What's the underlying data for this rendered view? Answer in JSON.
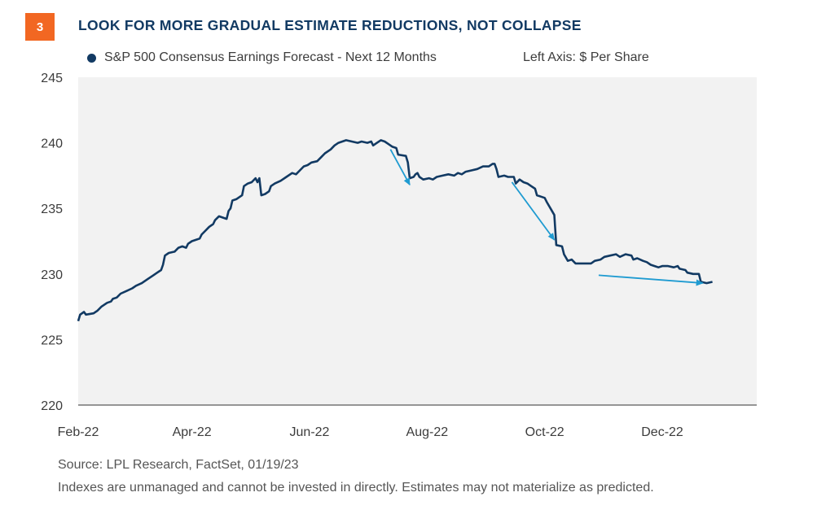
{
  "figure": {
    "number": "3",
    "title": "LOOK FOR MORE GRADUAL ESTIMATE REDUCTIONS, NOT COLLAPSE",
    "legend_label": "S&P 500 Consensus Earnings Forecast - Next 12 Months",
    "axis_unit_label": "Left Axis: $ Per Share",
    "source": "Source: LPL Research, FactSet,  01/19/23",
    "disclaimer": "Indexes are unmanaged and cannot be invested in directly. Estimates may not materialize as predicted.",
    "colors": {
      "badge": "#f26722",
      "title": "#123a63",
      "line": "#123a63",
      "arrow": "#1f9bd1",
      "plot_bg": "#f2f2f2"
    }
  },
  "chart_data": {
    "type": "line",
    "title": "LOOK FOR MORE GRADUAL ESTIMATE REDUCTIONS, NOT COLLAPSE",
    "xlabel": "",
    "ylabel": "$ Per Share",
    "ylim": [
      220,
      245
    ],
    "yticks": [
      220,
      225,
      230,
      235,
      240,
      245
    ],
    "xlim": [
      "2022-02-01",
      "2023-01-19"
    ],
    "xticks": [
      {
        "date": "2022-02-01",
        "label": "Feb-22"
      },
      {
        "date": "2022-04-01",
        "label": "Apr-22"
      },
      {
        "date": "2022-06-01",
        "label": "Jun-22"
      },
      {
        "date": "2022-08-01",
        "label": "Aug-22"
      },
      {
        "date": "2022-10-01",
        "label": "Oct-22"
      },
      {
        "date": "2022-12-01",
        "label": "Dec-22"
      }
    ],
    "grid": false,
    "legend": "top-left",
    "series": [
      {
        "name": "S&P 500 Consensus Earnings Forecast - Next 12 Months",
        "points": [
          [
            "2022-02-01",
            226.4
          ],
          [
            "2022-02-02",
            226.9
          ],
          [
            "2022-02-04",
            227.1
          ],
          [
            "2022-02-05",
            226.9
          ],
          [
            "2022-02-09",
            227.0
          ],
          [
            "2022-02-11",
            227.2
          ],
          [
            "2022-02-13",
            227.5
          ],
          [
            "2022-02-16",
            227.8
          ],
          [
            "2022-02-18",
            227.9
          ],
          [
            "2022-02-19",
            228.1
          ],
          [
            "2022-02-21",
            228.2
          ],
          [
            "2022-02-23",
            228.5
          ],
          [
            "2022-02-26",
            228.7
          ],
          [
            "2022-03-01",
            228.9
          ],
          [
            "2022-03-03",
            229.1
          ],
          [
            "2022-03-06",
            229.3
          ],
          [
            "2022-03-09",
            229.6
          ],
          [
            "2022-03-12",
            229.9
          ],
          [
            "2022-03-14",
            230.1
          ],
          [
            "2022-03-16",
            230.3
          ],
          [
            "2022-03-17",
            230.7
          ],
          [
            "2022-03-18",
            231.4
          ],
          [
            "2022-03-20",
            231.6
          ],
          [
            "2022-03-23",
            231.7
          ],
          [
            "2022-03-25",
            232.0
          ],
          [
            "2022-03-27",
            232.1
          ],
          [
            "2022-03-29",
            232.0
          ],
          [
            "2022-03-30",
            232.3
          ],
          [
            "2022-04-01",
            232.5
          ],
          [
            "2022-04-03",
            232.6
          ],
          [
            "2022-04-05",
            232.7
          ],
          [
            "2022-04-06",
            233.0
          ],
          [
            "2022-04-08",
            233.3
          ],
          [
            "2022-04-10",
            233.6
          ],
          [
            "2022-04-12",
            233.8
          ],
          [
            "2022-04-13",
            234.1
          ],
          [
            "2022-04-15",
            234.4
          ],
          [
            "2022-04-17",
            234.3
          ],
          [
            "2022-04-19",
            234.2
          ],
          [
            "2022-04-20",
            234.8
          ],
          [
            "2022-04-21",
            235.0
          ],
          [
            "2022-04-22",
            235.6
          ],
          [
            "2022-04-24",
            235.7
          ],
          [
            "2022-04-26",
            235.9
          ],
          [
            "2022-04-27",
            236.0
          ],
          [
            "2022-04-28",
            236.7
          ],
          [
            "2022-04-30",
            236.9
          ],
          [
            "2022-05-02",
            237.0
          ],
          [
            "2022-05-04",
            237.3
          ],
          [
            "2022-05-05",
            237.0
          ],
          [
            "2022-05-06",
            237.3
          ],
          [
            "2022-05-07",
            236.0
          ],
          [
            "2022-05-09",
            236.1
          ],
          [
            "2022-05-11",
            236.3
          ],
          [
            "2022-05-12",
            236.7
          ],
          [
            "2022-05-14",
            236.9
          ],
          [
            "2022-05-17",
            237.1
          ],
          [
            "2022-05-20",
            237.4
          ],
          [
            "2022-05-23",
            237.7
          ],
          [
            "2022-05-25",
            237.6
          ],
          [
            "2022-05-27",
            237.9
          ],
          [
            "2022-05-29",
            238.2
          ],
          [
            "2022-05-31",
            238.3
          ],
          [
            "2022-06-02",
            238.5
          ],
          [
            "2022-06-05",
            238.6
          ],
          [
            "2022-06-07",
            238.9
          ],
          [
            "2022-06-09",
            239.2
          ],
          [
            "2022-06-12",
            239.5
          ],
          [
            "2022-06-14",
            239.8
          ],
          [
            "2022-06-16",
            240.0
          ],
          [
            "2022-06-18",
            240.1
          ],
          [
            "2022-06-20",
            240.2
          ],
          [
            "2022-06-23",
            240.1
          ],
          [
            "2022-06-26",
            240.0
          ],
          [
            "2022-06-28",
            240.1
          ],
          [
            "2022-07-01",
            240.0
          ],
          [
            "2022-07-03",
            240.1
          ],
          [
            "2022-07-04",
            239.8
          ],
          [
            "2022-07-06",
            240.0
          ],
          [
            "2022-07-08",
            240.2
          ],
          [
            "2022-07-10",
            240.1
          ],
          [
            "2022-07-12",
            239.9
          ],
          [
            "2022-07-14",
            239.7
          ],
          [
            "2022-07-16",
            239.6
          ],
          [
            "2022-07-17",
            239.1
          ],
          [
            "2022-07-21",
            239.0
          ],
          [
            "2022-07-22",
            238.5
          ],
          [
            "2022-07-23",
            237.3
          ],
          [
            "2022-07-25",
            237.4
          ],
          [
            "2022-07-26",
            237.6
          ],
          [
            "2022-07-27",
            237.7
          ],
          [
            "2022-07-28",
            237.4
          ],
          [
            "2022-07-30",
            237.2
          ],
          [
            "2022-08-02",
            237.3
          ],
          [
            "2022-08-04",
            237.2
          ],
          [
            "2022-08-06",
            237.4
          ],
          [
            "2022-08-09",
            237.5
          ],
          [
            "2022-08-12",
            237.6
          ],
          [
            "2022-08-15",
            237.5
          ],
          [
            "2022-08-17",
            237.7
          ],
          [
            "2022-08-19",
            237.6
          ],
          [
            "2022-08-21",
            237.8
          ],
          [
            "2022-08-24",
            237.9
          ],
          [
            "2022-08-27",
            238.0
          ],
          [
            "2022-08-30",
            238.2
          ],
          [
            "2022-09-02",
            238.2
          ],
          [
            "2022-09-04",
            238.4
          ],
          [
            "2022-09-05",
            238.4
          ],
          [
            "2022-09-06",
            238.0
          ],
          [
            "2022-09-07",
            237.4
          ],
          [
            "2022-09-10",
            237.5
          ],
          [
            "2022-09-12",
            237.4
          ],
          [
            "2022-09-15",
            237.4
          ],
          [
            "2022-09-16",
            236.9
          ],
          [
            "2022-09-18",
            237.2
          ],
          [
            "2022-09-20",
            237.0
          ],
          [
            "2022-09-22",
            236.9
          ],
          [
            "2022-09-24",
            236.7
          ],
          [
            "2022-09-26",
            236.5
          ],
          [
            "2022-09-27",
            236.0
          ],
          [
            "2022-09-29",
            235.9
          ],
          [
            "2022-10-01",
            235.8
          ],
          [
            "2022-10-02",
            235.5
          ],
          [
            "2022-10-04",
            235.0
          ],
          [
            "2022-10-06",
            234.5
          ],
          [
            "2022-10-07",
            232.2
          ],
          [
            "2022-10-10",
            232.1
          ],
          [
            "2022-10-11",
            231.5
          ],
          [
            "2022-10-13",
            231.0
          ],
          [
            "2022-10-15",
            231.1
          ],
          [
            "2022-10-17",
            230.8
          ],
          [
            "2022-10-25",
            230.8
          ],
          [
            "2022-10-27",
            231.0
          ],
          [
            "2022-10-30",
            231.1
          ],
          [
            "2022-11-01",
            231.3
          ],
          [
            "2022-11-04",
            231.4
          ],
          [
            "2022-11-07",
            231.5
          ],
          [
            "2022-11-09",
            231.3
          ],
          [
            "2022-11-12",
            231.5
          ],
          [
            "2022-11-15",
            231.4
          ],
          [
            "2022-11-16",
            231.1
          ],
          [
            "2022-11-18",
            231.2
          ],
          [
            "2022-11-21",
            231.0
          ],
          [
            "2022-11-23",
            230.9
          ],
          [
            "2022-11-25",
            230.7
          ],
          [
            "2022-11-27",
            230.6
          ],
          [
            "2022-11-29",
            230.5
          ],
          [
            "2022-12-01",
            230.6
          ],
          [
            "2022-12-04",
            230.6
          ],
          [
            "2022-12-07",
            230.5
          ],
          [
            "2022-12-09",
            230.6
          ],
          [
            "2022-12-10",
            230.4
          ],
          [
            "2022-12-13",
            230.3
          ],
          [
            "2022-12-14",
            230.1
          ],
          [
            "2022-12-17",
            230.0
          ],
          [
            "2022-12-20",
            230.0
          ],
          [
            "2022-12-21",
            229.4
          ],
          [
            "2022-12-24",
            229.3
          ],
          [
            "2022-12-27",
            229.4
          ]
        ]
      }
    ],
    "annotations": [
      {
        "type": "arrow",
        "from": [
          "2022-07-13",
          239.5
        ],
        "to": [
          "2022-07-23",
          236.8
        ]
      },
      {
        "type": "arrow",
        "from": [
          "2022-09-14",
          237.0
        ],
        "to": [
          "2022-10-06",
          232.6
        ]
      },
      {
        "type": "arrow",
        "from": [
          "2022-10-29",
          229.9
        ],
        "to": [
          "2022-12-22",
          229.3
        ]
      }
    ]
  }
}
